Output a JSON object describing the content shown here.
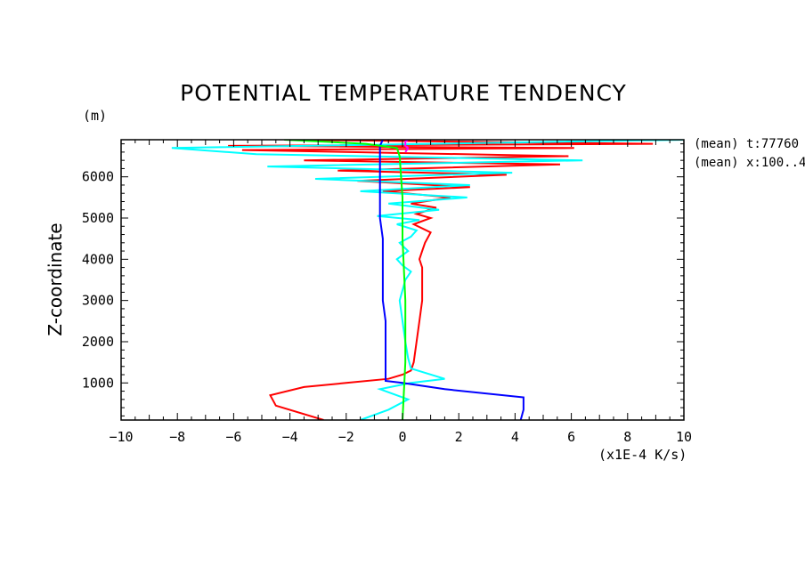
{
  "chart_data": {
    "type": "line",
    "title": "POTENTIAL TEMPERATURE TENDENCY",
    "xlabel": "(x1E-4 K/s)",
    "ylabel": "Z-coordinate",
    "yunit": "(m)",
    "annotations": [
      "(mean) t:77760",
      "(mean) x:100..4"
    ],
    "xlim": [
      -10,
      10
    ],
    "ylim": [
      100,
      6900
    ],
    "xticks": [
      -10,
      -8,
      -6,
      -4,
      -2,
      0,
      2,
      4,
      6,
      8,
      10
    ],
    "yticks": [
      1000,
      2000,
      3000,
      4000,
      5000,
      6000
    ],
    "grid": false,
    "series": [
      {
        "color": "#ff0000",
        "x": [
          -2.8,
          -4.5,
          -4.7,
          -3.5,
          -2.0,
          -0.5,
          0.0,
          0.3,
          0.4,
          0.5,
          0.6,
          0.7,
          0.7,
          0.7,
          0.6,
          0.7,
          0.8,
          1.0,
          0.4,
          1.0,
          0.5,
          1.2,
          0.3,
          1.7,
          -0.7,
          2.4,
          -1.6,
          3.7,
          -2.3,
          5.6,
          -3.5,
          5.9,
          -5.7,
          6.1,
          -6.2,
          8.9,
          -4.2
        ],
        "y": [
          100,
          450,
          700,
          900,
          1000,
          1100,
          1200,
          1300,
          1500,
          2000,
          2500,
          3000,
          3500,
          3800,
          4000,
          4200,
          4400,
          4650,
          4850,
          5000,
          5100,
          5250,
          5350,
          5500,
          5650,
          5750,
          5900,
          6050,
          6150,
          6300,
          6400,
          6500,
          6650,
          6700,
          6750,
          6800,
          6900
        ]
      },
      {
        "color": "#00ffff",
        "x": [
          -1.5,
          -0.5,
          0.2,
          -0.8,
          0.3,
          1.5,
          0.3,
          0.2,
          0.1,
          0.0,
          -0.1,
          0.1,
          0.3,
          0.0,
          -0.2,
          0.2,
          -0.1,
          0.3,
          0.5,
          -0.2,
          0.6,
          -0.9,
          1.3,
          -0.5,
          2.3,
          -1.5,
          2.4,
          -3.1,
          3.9,
          -4.8,
          6.4,
          -5.2,
          -8.2,
          10.0
        ],
        "y": [
          100,
          350,
          600,
          850,
          1000,
          1100,
          1350,
          1600,
          2000,
          2500,
          3000,
          3500,
          3700,
          3850,
          4000,
          4200,
          4400,
          4550,
          4700,
          4850,
          4950,
          5050,
          5200,
          5350,
          5500,
          5650,
          5800,
          5950,
          6100,
          6250,
          6400,
          6550,
          6700,
          6900
        ]
      },
      {
        "color": "#0000ff",
        "x": [
          4.2,
          4.3,
          4.3,
          1.5,
          0.0,
          -0.6,
          -0.6,
          -0.6,
          -0.7,
          -0.7,
          -0.7,
          -0.7,
          -0.8,
          -0.8,
          -0.8,
          -0.8,
          -0.8,
          -0.7
        ],
        "y": [
          100,
          350,
          650,
          850,
          1000,
          1050,
          1500,
          2500,
          3000,
          3500,
          4000,
          4500,
          5000,
          5500,
          6000,
          6500,
          6750,
          6900
        ]
      },
      {
        "color": "#00ff00",
        "x": [
          0.0,
          0.1,
          0.1,
          0.0,
          0.0,
          -0.1,
          -0.2,
          -1.3,
          -4.2
        ],
        "y": [
          100,
          1500,
          3000,
          4500,
          5500,
          6500,
          6700,
          6800,
          6900
        ]
      },
      {
        "color": "#ff00ff",
        "x": [
          0.1,
          0.2,
          0.1,
          0.1,
          0.2
        ],
        "y": [
          6600,
          6700,
          6750,
          6850,
          6900
        ]
      }
    ]
  }
}
